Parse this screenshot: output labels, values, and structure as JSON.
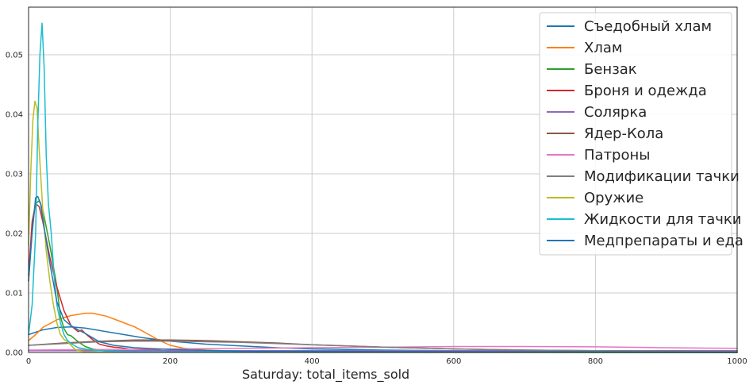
{
  "chart_data": {
    "type": "line",
    "title": "",
    "xlabel": "Saturday: total_items_sold",
    "ylabel": "",
    "xlim": [
      0,
      1000
    ],
    "ylim": [
      0,
      0.058
    ],
    "xticks": [
      0,
      200,
      400,
      600,
      800,
      1000
    ],
    "xtick_labels": [
      "0",
      "200",
      "400",
      "600",
      "800",
      "1000"
    ],
    "yticks": [
      0.0,
      0.01,
      0.02,
      0.03,
      0.04,
      0.05
    ],
    "ytick_labels": [
      "0.00",
      "0.01",
      "0.02",
      "0.03",
      "0.04",
      "0.05"
    ],
    "grid": true,
    "legend_position": "top-right",
    "series": [
      {
        "name": "Съедобный хлам",
        "color": "#1f77b4",
        "points": [
          [
            0,
            0.003
          ],
          [
            20,
            0.0038
          ],
          [
            40,
            0.0042
          ],
          [
            60,
            0.0043
          ],
          [
            80,
            0.0041
          ],
          [
            100,
            0.0037
          ],
          [
            130,
            0.0031
          ],
          [
            160,
            0.0025
          ],
          [
            200,
            0.0019
          ],
          [
            250,
            0.0014
          ],
          [
            300,
            0.0011
          ],
          [
            350,
            0.0008
          ],
          [
            400,
            0.0006
          ],
          [
            500,
            0.0004
          ],
          [
            600,
            0.0003
          ],
          [
            700,
            0.0002
          ],
          [
            800,
            0.00015
          ],
          [
            1000,
            0.0001
          ]
        ]
      },
      {
        "name": "Хлам",
        "color": "#ff7f0e",
        "points": [
          [
            0,
            0.002
          ],
          [
            10,
            0.003
          ],
          [
            20,
            0.0042
          ],
          [
            40,
            0.0055
          ],
          [
            60,
            0.0062
          ],
          [
            80,
            0.0066
          ],
          [
            90,
            0.0066
          ],
          [
            110,
            0.0061
          ],
          [
            130,
            0.0052
          ],
          [
            150,
            0.0043
          ],
          [
            170,
            0.003
          ],
          [
            185,
            0.002
          ],
          [
            200,
            0.0012
          ],
          [
            220,
            0.0007
          ],
          [
            250,
            0.0004
          ],
          [
            300,
            0.0002
          ],
          [
            400,
            0.0001
          ],
          [
            1000,
            2e-05
          ]
        ]
      },
      {
        "name": "Бензак",
        "color": "#2ca02c",
        "points": [
          [
            0,
            0.012
          ],
          [
            5,
            0.021
          ],
          [
            10,
            0.025
          ],
          [
            15,
            0.0255
          ],
          [
            20,
            0.024
          ],
          [
            30,
            0.018
          ],
          [
            40,
            0.011
          ],
          [
            45,
            0.006
          ],
          [
            50,
            0.004
          ],
          [
            55,
            0.003
          ],
          [
            60,
            0.0028
          ],
          [
            70,
            0.0018
          ],
          [
            80,
            0.001
          ],
          [
            90,
            0.0006
          ],
          [
            100,
            0.0004
          ],
          [
            110,
            0.0002
          ],
          [
            130,
            0.0001
          ],
          [
            200,
            3e-05
          ],
          [
            1000,
            0.0
          ]
        ]
      },
      {
        "name": "Броня и одежда",
        "color": "#d62728",
        "points": [
          [
            0,
            0.013
          ],
          [
            5,
            0.022
          ],
          [
            10,
            0.025
          ],
          [
            15,
            0.0245
          ],
          [
            20,
            0.022
          ],
          [
            30,
            0.016
          ],
          [
            40,
            0.011
          ],
          [
            50,
            0.007
          ],
          [
            60,
            0.0045
          ],
          [
            70,
            0.0035
          ],
          [
            75,
            0.0038
          ],
          [
            80,
            0.0032
          ],
          [
            90,
            0.0022
          ],
          [
            100,
            0.0014
          ],
          [
            110,
            0.0011
          ],
          [
            120,
            0.0009
          ],
          [
            130,
            0.0008
          ],
          [
            140,
            0.0006
          ],
          [
            160,
            0.0005
          ],
          [
            180,
            0.0004
          ],
          [
            200,
            0.0002
          ],
          [
            300,
            0.0001
          ],
          [
            1000,
            2e-05
          ]
        ]
      },
      {
        "name": "Солярка",
        "color": "#9467bd",
        "points": [
          [
            0,
            0.0003
          ],
          [
            100,
            0.0003
          ],
          [
            200,
            0.0003
          ],
          [
            300,
            0.0003
          ],
          [
            400,
            0.0003
          ],
          [
            500,
            0.0003
          ],
          [
            600,
            0.0003
          ],
          [
            700,
            0.0003
          ],
          [
            800,
            0.0003
          ],
          [
            900,
            0.0003
          ],
          [
            1000,
            0.0003
          ]
        ]
      },
      {
        "name": "Ядер-Кола",
        "color": "#8c564b",
        "points": [
          [
            0,
            0.0012
          ],
          [
            50,
            0.0016
          ],
          [
            100,
            0.0019
          ],
          [
            150,
            0.0021
          ],
          [
            200,
            0.0021
          ],
          [
            250,
            0.002
          ],
          [
            300,
            0.0018
          ],
          [
            350,
            0.0016
          ],
          [
            400,
            0.0013
          ],
          [
            450,
            0.0011
          ],
          [
            500,
            0.0009
          ],
          [
            600,
            0.0006
          ],
          [
            700,
            0.0004
          ],
          [
            800,
            0.0003
          ],
          [
            900,
            0.0002
          ],
          [
            1000,
            0.00015
          ]
        ]
      },
      {
        "name": "Патроны",
        "color": "#e377c2",
        "points": [
          [
            0,
            0.0004
          ],
          [
            100,
            0.0005
          ],
          [
            200,
            0.0006
          ],
          [
            300,
            0.0007
          ],
          [
            400,
            0.0008
          ],
          [
            500,
            0.0009
          ],
          [
            600,
            0.001
          ],
          [
            700,
            0.001
          ],
          [
            800,
            0.00095
          ],
          [
            900,
            0.0008
          ],
          [
            1000,
            0.0007
          ]
        ]
      },
      {
        "name": "Модификации тачки",
        "color": "#7f7f7f",
        "points": [
          [
            0,
            0.0012
          ],
          [
            50,
            0.0015
          ],
          [
            100,
            0.0018
          ],
          [
            150,
            0.0019
          ],
          [
            200,
            0.0019
          ],
          [
            250,
            0.0018
          ],
          [
            300,
            0.0017
          ],
          [
            350,
            0.0015
          ],
          [
            400,
            0.0013
          ],
          [
            450,
            0.0011
          ],
          [
            500,
            0.0009
          ],
          [
            600,
            0.0006
          ],
          [
            700,
            0.0004
          ],
          [
            800,
            0.0003
          ],
          [
            900,
            0.0002
          ],
          [
            1000,
            0.00015
          ]
        ]
      },
      {
        "name": "Оружие",
        "color": "#bcbd22",
        "points": [
          [
            0,
            0.018
          ],
          [
            3,
            0.03
          ],
          [
            6,
            0.039
          ],
          [
            9,
            0.0422
          ],
          [
            12,
            0.041
          ],
          [
            15,
            0.034
          ],
          [
            20,
            0.024
          ],
          [
            25,
            0.017
          ],
          [
            30,
            0.012
          ],
          [
            35,
            0.008
          ],
          [
            40,
            0.005
          ],
          [
            45,
            0.003
          ],
          [
            50,
            0.0022
          ],
          [
            55,
            0.0018
          ],
          [
            60,
            0.0012
          ],
          [
            65,
            0.0006
          ],
          [
            70,
            0.0003
          ],
          [
            80,
            0.0001
          ],
          [
            100,
            5e-05
          ],
          [
            1000,
            0.0
          ]
        ]
      },
      {
        "name": "Жидкости для тачки",
        "color": "#17becf",
        "points": [
          [
            0,
            0.003
          ],
          [
            5,
            0.008
          ],
          [
            10,
            0.02
          ],
          [
            13,
            0.038
          ],
          [
            16,
            0.05
          ],
          [
            19,
            0.0553
          ],
          [
            22,
            0.048
          ],
          [
            25,
            0.033
          ],
          [
            28,
            0.025
          ],
          [
            32,
            0.02
          ],
          [
            36,
            0.013
          ],
          [
            40,
            0.008
          ],
          [
            45,
            0.005
          ],
          [
            50,
            0.003
          ],
          [
            55,
            0.002
          ],
          [
            60,
            0.0015
          ],
          [
            70,
            0.0008
          ],
          [
            80,
            0.0006
          ],
          [
            90,
            0.0004
          ],
          [
            100,
            0.0003
          ],
          [
            120,
            0.0002
          ],
          [
            150,
            0.0001
          ],
          [
            1000,
            0.0
          ]
        ]
      },
      {
        "name": "Медпрепараты и еда",
        "color": "#1f77b4",
        "points": [
          [
            0,
            0.012
          ],
          [
            5,
            0.02
          ],
          [
            10,
            0.026
          ],
          [
            13,
            0.0262
          ],
          [
            17,
            0.025
          ],
          [
            22,
            0.021
          ],
          [
            30,
            0.015
          ],
          [
            40,
            0.0085
          ],
          [
            50,
            0.0055
          ],
          [
            60,
            0.0045
          ],
          [
            70,
            0.0038
          ],
          [
            80,
            0.0032
          ],
          [
            90,
            0.0025
          ],
          [
            100,
            0.0018
          ],
          [
            120,
            0.0012
          ],
          [
            150,
            0.0008
          ],
          [
            200,
            0.0005
          ],
          [
            300,
            0.0002
          ],
          [
            1000,
            5e-05
          ]
        ]
      }
    ]
  }
}
